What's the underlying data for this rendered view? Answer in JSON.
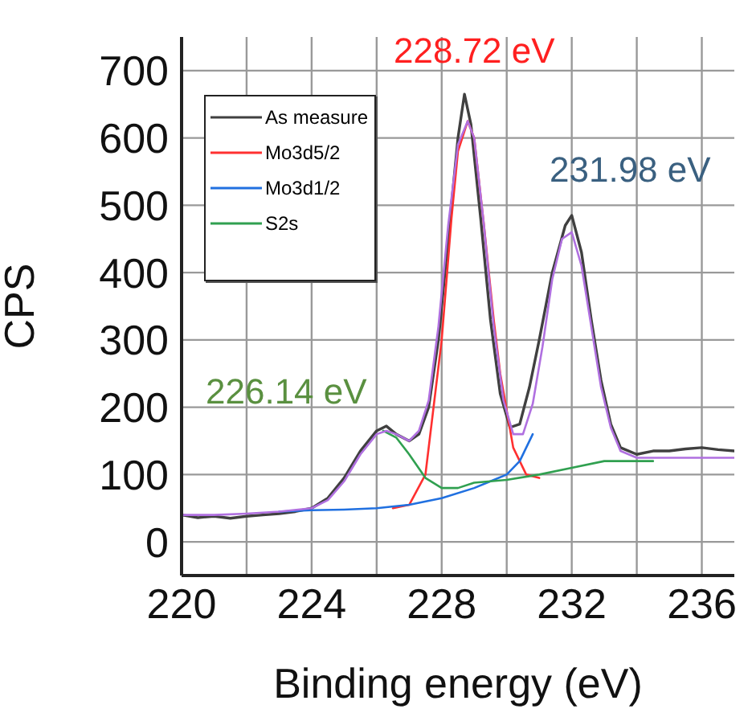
{
  "chart_data": {
    "type": "line",
    "xlabel": "Binding energy (eV)",
    "ylabel": "CPS",
    "xlim": [
      220,
      237
    ],
    "ylim": [
      -50,
      750
    ],
    "xticks": [
      220,
      {
        "value": 222,
        "label": null
      },
      224,
      {
        "value": 226,
        "label": null
      },
      228,
      {
        "value": 230,
        "label": null
      },
      232,
      {
        "value": 234,
        "label": null
      },
      236
    ],
    "yticks": [
      0,
      100,
      200,
      300,
      400,
      500,
      600,
      700
    ],
    "grid": true,
    "legend": "top left",
    "marker": "none",
    "line_style": "solid",
    "annotations": [
      "228.72 eV",
      "231.98 eV",
      "226.14 eV"
    ],
    "series": [
      {
        "name": "As measure",
        "color": "#404040",
        "x": [
          220,
          220.5,
          221,
          221.5,
          222,
          222.5,
          223,
          223.5,
          224,
          224.5,
          225,
          225.5,
          226,
          226.3,
          226.6,
          227,
          227.3,
          227.6,
          227.9,
          228.2,
          228.5,
          228.7,
          228.9,
          229.2,
          229.5,
          229.8,
          230.1,
          230.4,
          230.7,
          231,
          231.4,
          231.8,
          232,
          232.3,
          232.6,
          232.9,
          233.2,
          233.5,
          234,
          234.5,
          235,
          235.5,
          236,
          236.5,
          237
        ],
        "values": [
          40,
          36,
          38,
          35,
          38,
          40,
          42,
          45,
          50,
          65,
          95,
          135,
          165,
          172,
          160,
          150,
          160,
          200,
          300,
          450,
          600,
          665,
          620,
          480,
          330,
          220,
          170,
          175,
          230,
          300,
          400,
          470,
          485,
          430,
          330,
          240,
          175,
          140,
          130,
          135,
          135,
          138,
          140,
          137,
          135
        ]
      },
      {
        "name": "Mo3d5/2",
        "color": "#ff3030",
        "x": [
          226.5,
          227,
          227.5,
          228,
          228.3,
          228.5,
          228.8,
          229,
          229.3,
          229.6,
          229.8,
          230.2,
          230.6,
          231
        ],
        "values": [
          50,
          55,
          100,
          300,
          480,
          580,
          625,
          600,
          470,
          330,
          250,
          140,
          100,
          95
        ]
      },
      {
        "name": "Mo3d1/2",
        "color": "#2070e0",
        "x": [
          223,
          224,
          225,
          226,
          227,
          228,
          229,
          229.5,
          230,
          230.4,
          230.8
        ],
        "values": [
          45,
          47,
          48,
          50,
          55,
          65,
          80,
          90,
          100,
          120,
          160
        ]
      },
      {
        "name": "S2s",
        "color": "#30a050",
        "x": [
          226.2,
          226.6,
          227,
          227.5,
          228,
          228.5,
          229,
          230,
          231,
          232,
          233,
          234,
          234.5
        ],
        "values": [
          165,
          155,
          130,
          95,
          80,
          80,
          88,
          92,
          100,
          110,
          120,
          120,
          120
        ]
      },
      {
        "color": "#b070e0",
        "x": [
          220,
          221,
          222,
          223,
          224,
          224.5,
          225,
          225.5,
          226,
          226.3,
          226.6,
          227,
          227.3,
          227.6,
          227.9,
          228.2,
          228.5,
          228.8,
          229,
          229.3,
          229.6,
          229.9,
          230.2,
          230.5,
          230.8,
          231.1,
          231.4,
          231.7,
          232,
          232.3,
          232.6,
          232.9,
          233.2,
          233.5,
          234,
          235,
          236,
          237
        ],
        "values": [
          40,
          40,
          42,
          45,
          50,
          62,
          90,
          130,
          160,
          165,
          160,
          150,
          165,
          210,
          320,
          470,
          590,
          625,
          600,
          470,
          320,
          210,
          160,
          160,
          205,
          290,
          390,
          450,
          460,
          410,
          320,
          230,
          170,
          135,
          125,
          125,
          125,
          125
        ]
      }
    ]
  }
}
